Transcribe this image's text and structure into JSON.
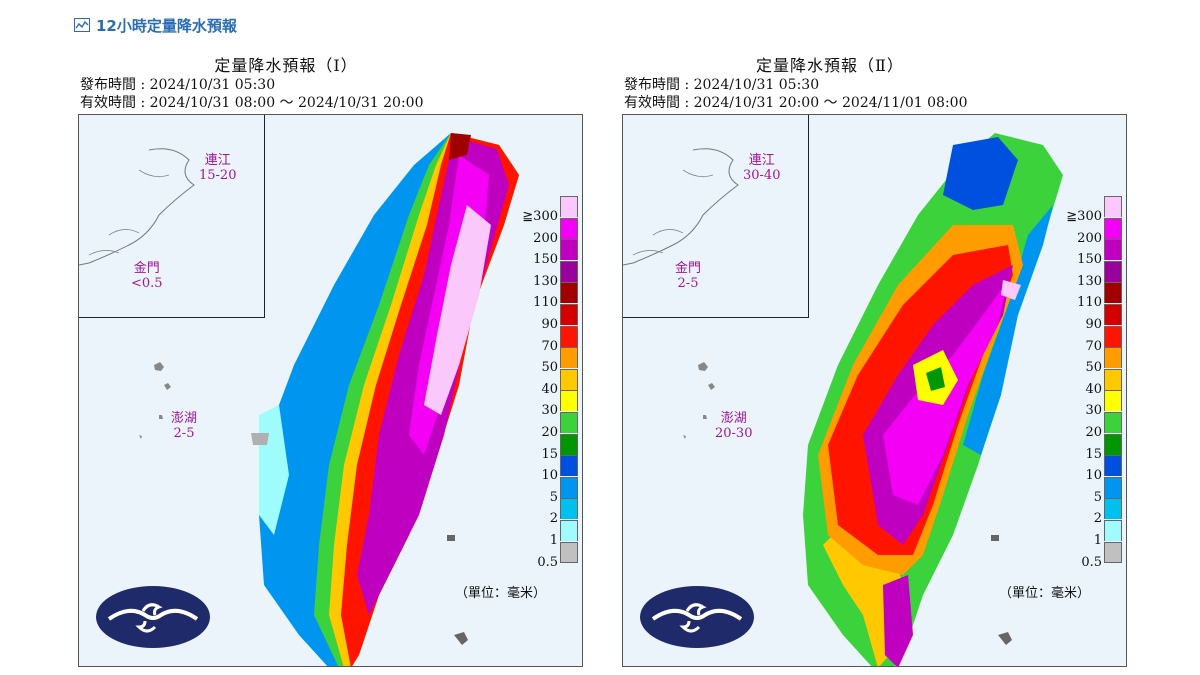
{
  "page_heading": "12小時定量降水預報",
  "panels": [
    {
      "title": "定量降水預報（Ⅰ）",
      "issue": "發布時間 : 2024/10/31 05:30",
      "valid": "有效時間 : 2024/10/31 08:00 ～ 2024/10/31 20:00",
      "islands": [
        {
          "name": "連江",
          "range": "15-20"
        },
        {
          "name": "金門",
          "range": "<0.5"
        },
        {
          "name": "澎湖",
          "range": "2-5"
        }
      ],
      "unit": "（單位：毫米）"
    },
    {
      "title": "定量降水預報（Ⅱ）",
      "issue": "發布時間 : 2024/10/31 05:30",
      "valid": "有效時間 : 2024/10/31 20:00 ～ 2024/11/01 08:00",
      "islands": [
        {
          "name": "連江",
          "range": "30-40"
        },
        {
          "name": "金門",
          "range": "2-5"
        },
        {
          "name": "澎湖",
          "range": "20-30"
        }
      ],
      "unit": "（單位：毫米）"
    }
  ],
  "legend": [
    {
      "label": "≧300",
      "color": "#fac8fa"
    },
    {
      "label": "200",
      "color": "#f400f4"
    },
    {
      "label": "150",
      "color": "#c000c0"
    },
    {
      "label": "130",
      "color": "#9a009a"
    },
    {
      "label": "110",
      "color": "#a00000"
    },
    {
      "label": "90",
      "color": "#d40000"
    },
    {
      "label": "70",
      "color": "#ff1400"
    },
    {
      "label": "50",
      "color": "#ff9c00"
    },
    {
      "label": "40",
      "color": "#ffc800"
    },
    {
      "label": "30",
      "color": "#ffff00"
    },
    {
      "label": "20",
      "color": "#3cd23c"
    },
    {
      "label": "15",
      "color": "#009600"
    },
    {
      "label": "10",
      "color": "#0050e0"
    },
    {
      "label": "5",
      "color": "#0096f0"
    },
    {
      "label": "2",
      "color": "#00c0f0"
    },
    {
      "label": "1",
      "color": "#9ffcfc"
    },
    {
      "label": "0.5",
      "color": "#c0c0c0"
    }
  ]
}
